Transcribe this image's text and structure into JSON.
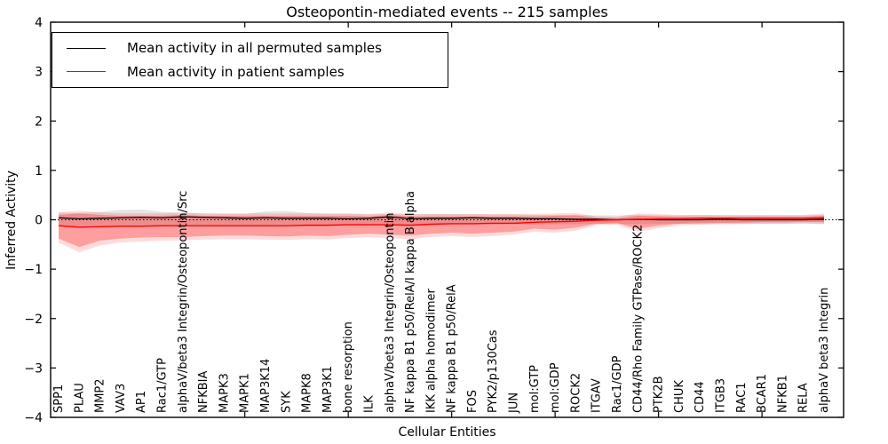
{
  "chart_data": {
    "type": "line",
    "title": "Osteopontin-mediated events -- 215 samples",
    "xlabel": "Cellular Entities",
    "ylabel": "Inferred Activity",
    "ylim": [
      -4,
      4
    ],
    "ytick_values": [
      4,
      3,
      2,
      1,
      0,
      -1,
      -2,
      -3,
      -4
    ],
    "ytick_labels": [
      "4",
      "3",
      "2",
      "1",
      "0",
      "−1",
      "−2",
      "−3",
      "−4"
    ],
    "grid": false,
    "background": "#ffffff",
    "axis_color": "#000000",
    "legend": {
      "position": "upper left",
      "entries": [
        {
          "label": "Mean activity in all permuted samples",
          "color": "#000000"
        },
        {
          "label": "Mean activity in patient samples",
          "color": "#ff0000"
        }
      ]
    },
    "categories": [
      "SPP1",
      "PLAU",
      "MMP2",
      "VAV3",
      "AP1",
      "Rac1/GTP",
      "alphaV/beta3 Integrin/Osteopontin/Src",
      "NFKBIA",
      "MAPK3",
      "MAPK1",
      "MAP3K14",
      "SYK",
      "MAPK8",
      "MAP3K1",
      "bone resorption",
      "ILK",
      "alphaV/beta3 Integrin/Osteopontin",
      "NF kappa B1 p50/RelA/I kappa B alpha",
      "IKK alpha homodimer",
      "NF kappa B1 p50/RelA",
      "FOS",
      "PYK2/p130Cas",
      "JUN",
      "mol:GTP",
      "mol:GDP",
      "ROCK2",
      "ITGAV",
      "Rac1/GDP",
      "CD44/Rho Family GTPase/ROCK2",
      "PTK2B",
      "CHUK",
      "CD44",
      "ITGB3",
      "RAC1",
      "BCAR1",
      "NFKB1",
      "RELA",
      "alphaV beta3 Integrin"
    ],
    "reference_line": {
      "value": 0,
      "color": "#000000",
      "style": "dotted"
    },
    "series": [
      {
        "name": "Mean activity in all permuted samples",
        "color": "#000000",
        "style": "solid",
        "width": 1.3,
        "values": [
          0.04,
          0.02,
          0.03,
          0.04,
          0.05,
          0.04,
          0.06,
          0.05,
          0.04,
          0.03,
          0.04,
          0.03,
          0.03,
          0.03,
          0.02,
          0.03,
          0.06,
          0.02,
          0.03,
          0.03,
          0.04,
          0.03,
          0.03,
          0.02,
          0.02,
          0.01,
          0.01,
          0.0,
          0.01,
          0.0,
          0.0,
          0.0,
          0.01,
          0.0,
          0.0,
          0.0,
          0.0,
          0.01
        ]
      },
      {
        "name": "Mean activity in patient samples",
        "color": "#ff0000",
        "style": "solid",
        "width": 1.4,
        "values": [
          -0.12,
          -0.15,
          -0.14,
          -0.13,
          -0.13,
          -0.12,
          -0.12,
          -0.12,
          -0.12,
          -0.12,
          -0.12,
          -0.12,
          -0.11,
          -0.11,
          -0.1,
          -0.1,
          -0.1,
          -0.11,
          -0.09,
          -0.08,
          -0.08,
          -0.07,
          -0.07,
          -0.05,
          -0.04,
          -0.03,
          -0.01,
          0.0,
          0.01,
          0.02,
          0.02,
          0.03,
          0.03,
          0.03,
          0.03,
          0.03,
          0.03,
          0.04
        ]
      }
    ],
    "bands": [
      {
        "name": "permuted samples spread",
        "color": "rgba(0,0,0,0.10)",
        "upper": [
          0.15,
          0.14,
          0.16,
          0.2,
          0.21,
          0.16,
          0.14,
          0.13,
          0.12,
          0.12,
          0.17,
          0.18,
          0.14,
          0.12,
          0.12,
          0.11,
          0.12,
          0.11,
          0.12,
          0.12,
          0.12,
          0.11,
          0.11,
          0.1,
          0.1,
          0.1,
          0.09,
          0.09,
          0.1,
          0.09,
          0.09,
          0.1,
          0.09,
          0.09,
          0.09,
          0.09,
          0.09,
          0.1
        ],
        "lower": [
          -0.12,
          -0.14,
          -0.13,
          -0.12,
          -0.12,
          -0.12,
          -0.1,
          -0.1,
          -0.1,
          -0.1,
          -0.1,
          -0.1,
          -0.1,
          -0.1,
          -0.1,
          -0.1,
          -0.09,
          -0.1,
          -0.09,
          -0.09,
          -0.09,
          -0.09,
          -0.09,
          -0.09,
          -0.09,
          -0.09,
          -0.08,
          -0.08,
          -0.09,
          -0.08,
          -0.08,
          -0.09,
          -0.08,
          -0.08,
          -0.08,
          -0.08,
          -0.08,
          -0.09
        ]
      },
      {
        "name": "patient samples outer spread",
        "color": "rgba(255,0,0,0.14)",
        "upper": [
          0.15,
          0.18,
          0.15,
          0.13,
          0.13,
          0.13,
          0.15,
          0.13,
          0.13,
          0.13,
          0.13,
          0.13,
          0.13,
          0.13,
          0.13,
          0.12,
          0.15,
          0.12,
          0.12,
          0.12,
          0.12,
          0.12,
          0.12,
          0.12,
          0.13,
          0.14,
          0.07,
          0.06,
          0.13,
          0.12,
          0.1,
          0.1,
          0.1,
          0.1,
          0.1,
          0.1,
          0.1,
          0.13
        ],
        "lower": [
          -0.46,
          -0.66,
          -0.52,
          -0.46,
          -0.44,
          -0.42,
          -0.42,
          -0.4,
          -0.39,
          -0.39,
          -0.4,
          -0.41,
          -0.39,
          -0.4,
          -0.37,
          -0.35,
          -0.37,
          -0.39,
          -0.35,
          -0.33,
          -0.35,
          -0.33,
          -0.3,
          -0.24,
          -0.26,
          -0.22,
          -0.11,
          -0.1,
          -0.24,
          -0.17,
          -0.12,
          -0.1,
          -0.09,
          -0.09,
          -0.08,
          -0.08,
          -0.07,
          -0.08
        ]
      },
      {
        "name": "patient samples inner spread",
        "color": "rgba(255,0,0,0.28)",
        "upper": [
          0.1,
          0.13,
          0.1,
          0.08,
          0.08,
          0.08,
          0.1,
          0.08,
          0.08,
          0.08,
          0.08,
          0.08,
          0.08,
          0.08,
          0.08,
          0.07,
          0.1,
          0.07,
          0.07,
          0.07,
          0.07,
          0.07,
          0.07,
          0.07,
          0.08,
          0.09,
          0.04,
          0.03,
          0.08,
          0.07,
          0.06,
          0.06,
          0.06,
          0.06,
          0.06,
          0.06,
          0.06,
          0.08
        ],
        "lower": [
          -0.38,
          -0.55,
          -0.42,
          -0.38,
          -0.36,
          -0.35,
          -0.35,
          -0.33,
          -0.32,
          -0.32,
          -0.33,
          -0.34,
          -0.32,
          -0.33,
          -0.3,
          -0.28,
          -0.3,
          -0.32,
          -0.28,
          -0.26,
          -0.28,
          -0.26,
          -0.24,
          -0.18,
          -0.2,
          -0.16,
          -0.08,
          -0.07,
          -0.18,
          -0.12,
          -0.08,
          -0.07,
          -0.06,
          -0.06,
          -0.05,
          -0.05,
          -0.04,
          -0.05
        ]
      }
    ],
    "xtick_indices": [
      9,
      14,
      19,
      24,
      29,
      34
    ]
  }
}
